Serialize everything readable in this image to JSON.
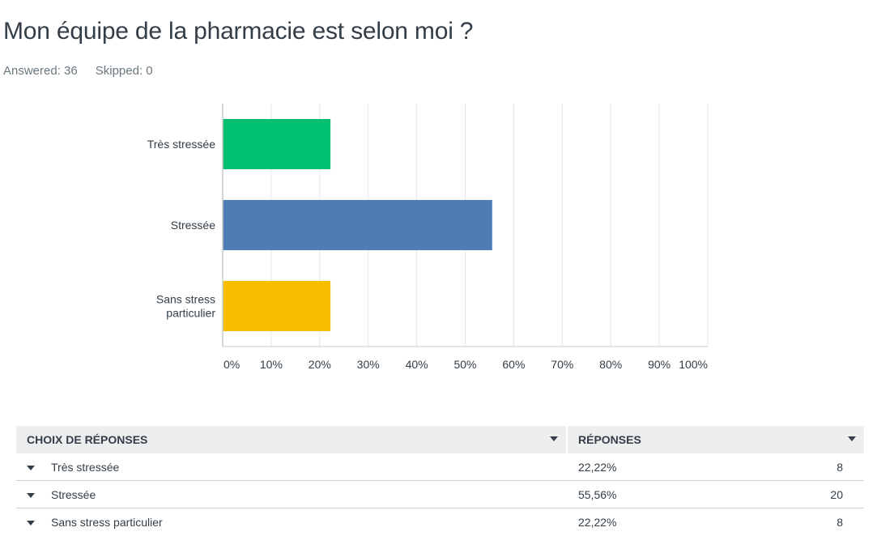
{
  "header": {
    "title": "Mon équipe de la pharmacie est selon moi ?",
    "answered": "Answered: 36",
    "skipped": "Skipped: 0"
  },
  "chart_data": {
    "type": "bar",
    "orientation": "horizontal",
    "categories": [
      "Très stressée",
      "Stressée",
      "Sans stress particulier"
    ],
    "category_label_lines": [
      [
        "Très stressée"
      ],
      [
        "Stressée"
      ],
      [
        "Sans stress",
        "particulier"
      ]
    ],
    "values": [
      22.22,
      55.56,
      22.22
    ],
    "colors": [
      "#00bf6f",
      "#507cb6",
      "#f9be00"
    ],
    "xlim": [
      0,
      100
    ],
    "x_ticks": [
      0,
      10,
      20,
      30,
      40,
      50,
      60,
      70,
      80,
      90,
      100
    ],
    "x_tick_labels": [
      "0%",
      "10%",
      "20%",
      "30%",
      "40%",
      "50%",
      "60%",
      "70%",
      "80%",
      "90%",
      "100%"
    ],
    "grid": true
  },
  "table": {
    "col_choices": "CHOIX DE RÉPONSES",
    "col_responses": "RÉPONSES",
    "rows": [
      {
        "choice": "Très stressée",
        "percent": "22,22%",
        "count": "8"
      },
      {
        "choice": "Stressée",
        "percent": "55,56%",
        "count": "20"
      },
      {
        "choice": "Sans stress particulier",
        "percent": "22,22%",
        "count": "8"
      }
    ]
  }
}
